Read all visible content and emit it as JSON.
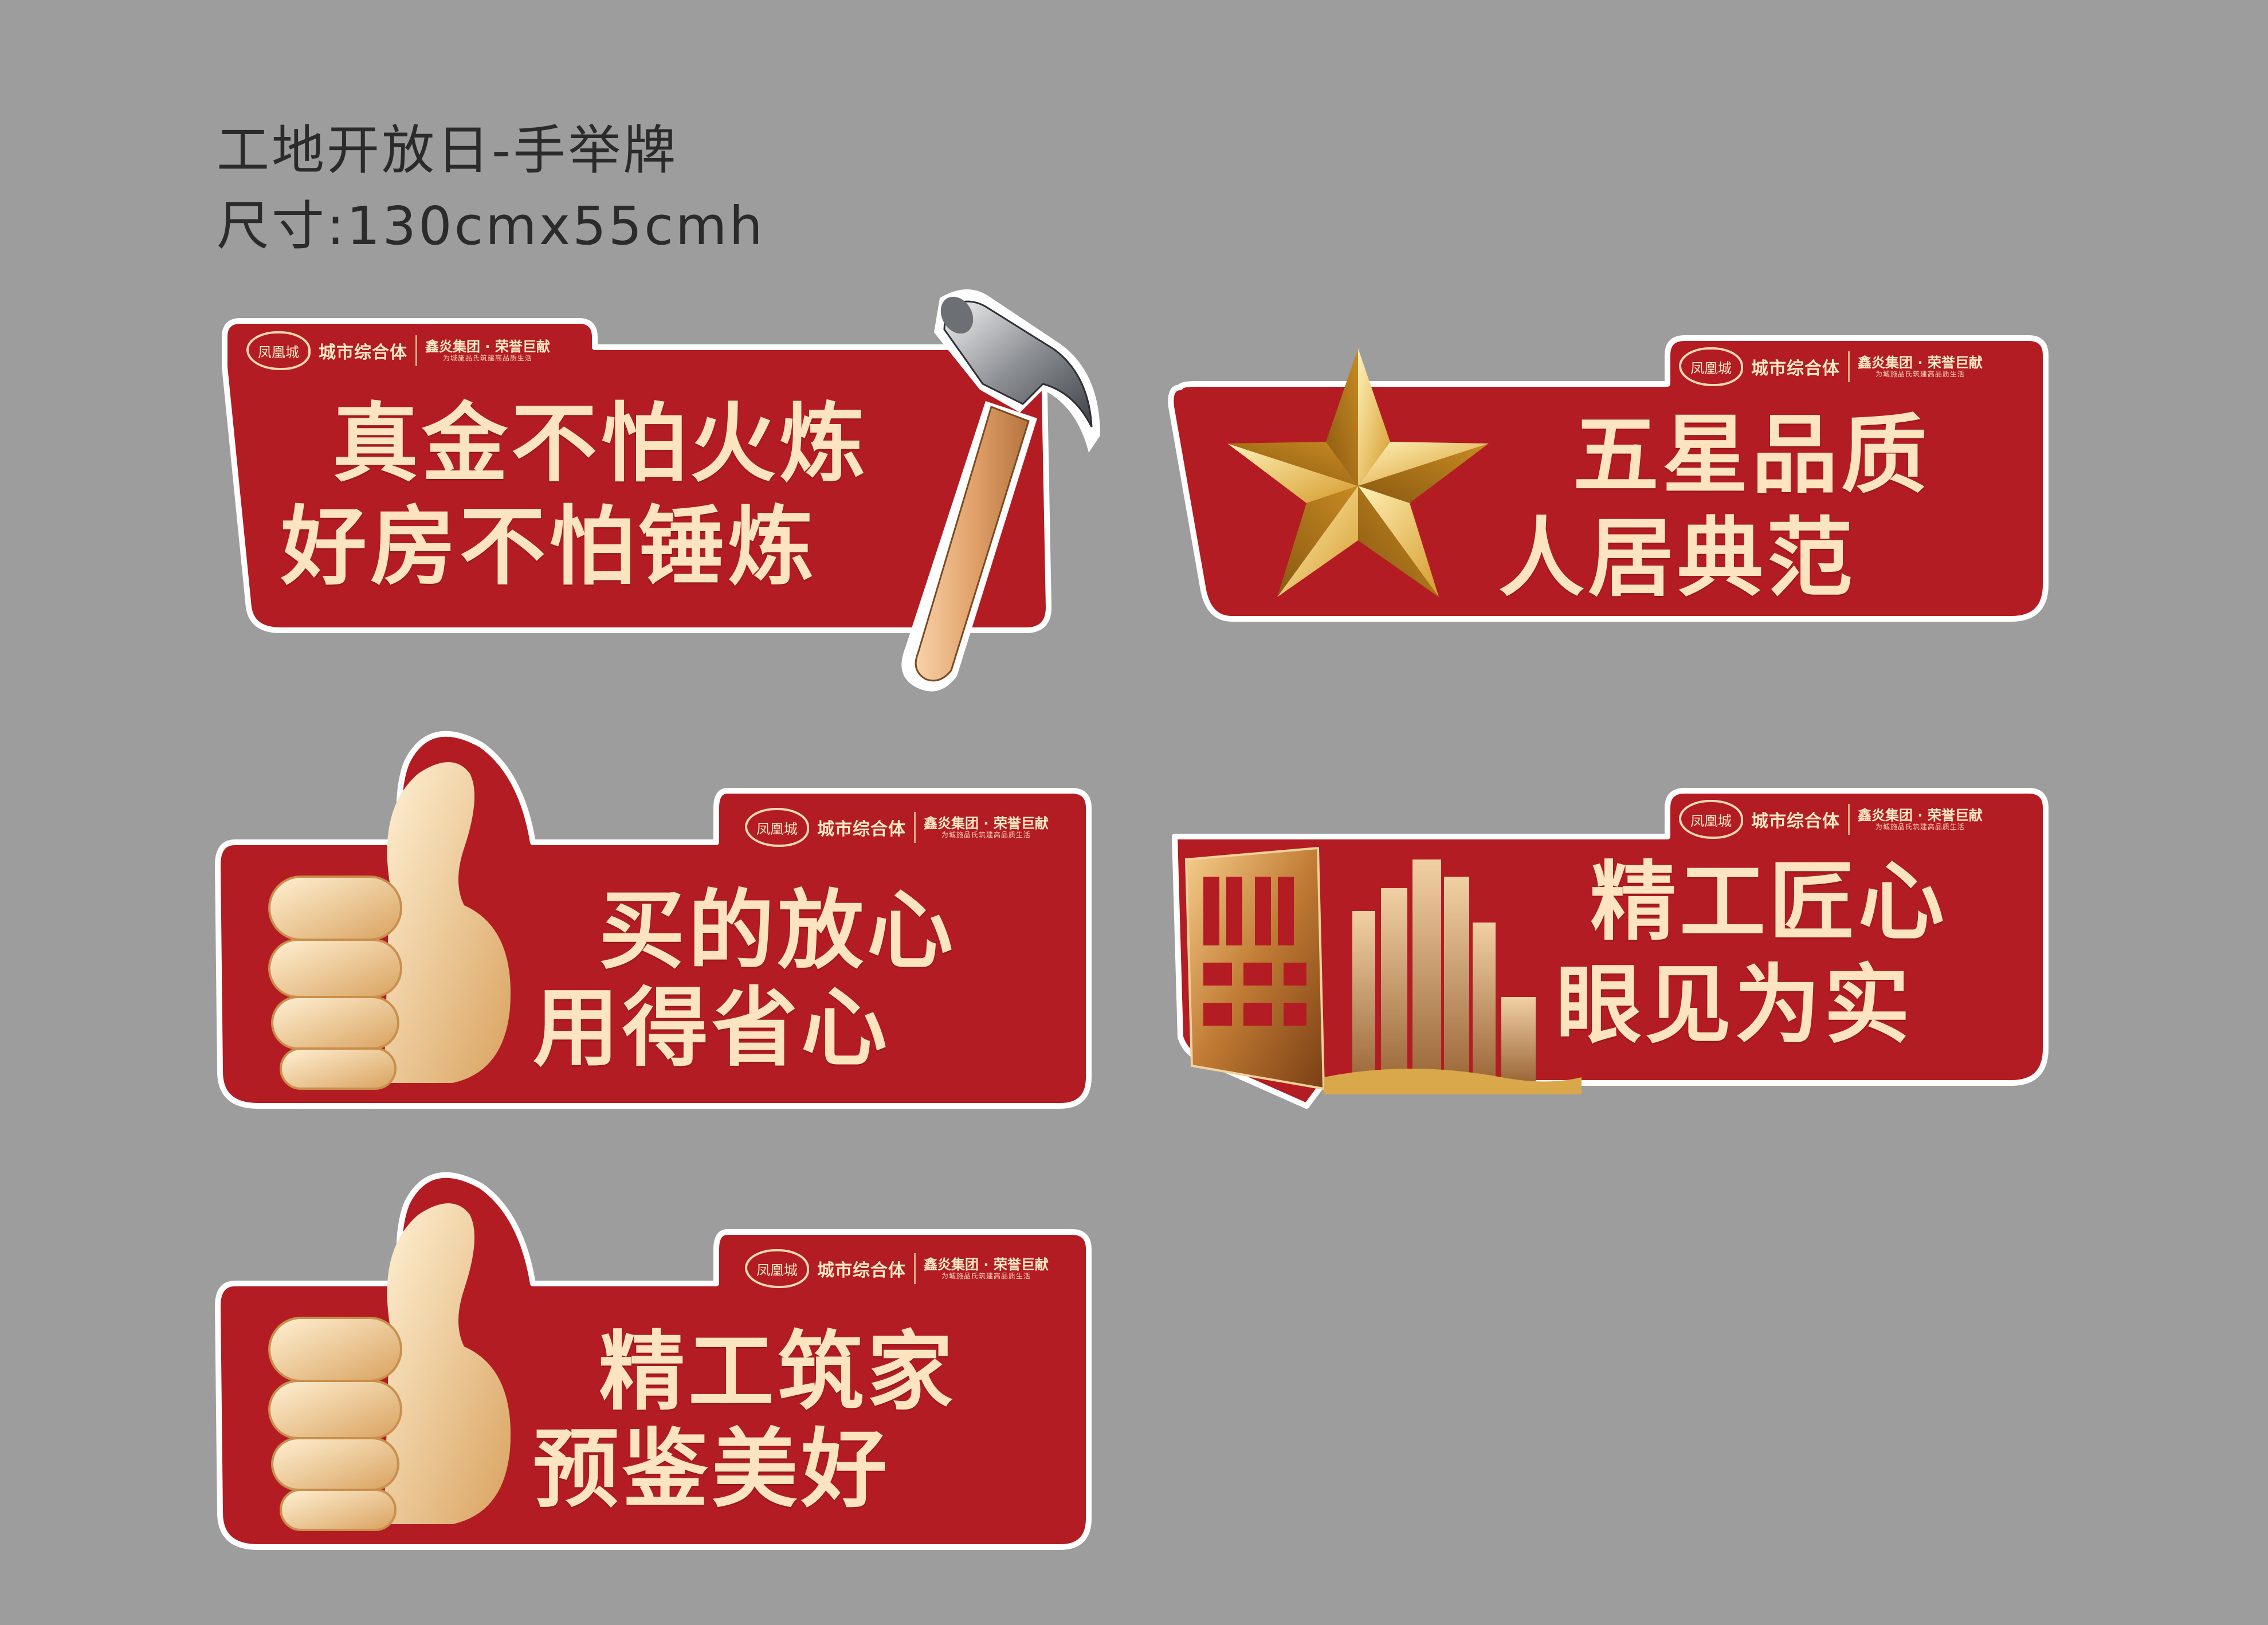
{
  "header": {
    "title": "工地开放日-手举牌",
    "size": "尺寸:130cmx55cmh"
  },
  "logo": {
    "seal": "凤凰城",
    "name": "城市综合体",
    "group": "鑫炎集团 · 荣誉巨献",
    "tagline": "为城施品氏筑建高品质生活"
  },
  "signs": [
    {
      "line1": "真金不怕火炼",
      "line2": "好房不怕锤炼",
      "icon": "hammer-icon"
    },
    {
      "line1": "五星品质",
      "line2": "人居典范",
      "icon": "gold-star-icon"
    },
    {
      "line1": "买的放心",
      "line2": "用得省心",
      "icon": "thumbs-up-icon"
    },
    {
      "line1": "精工匠心",
      "line2": "眼见为实",
      "icon": "city-buildings-icon"
    },
    {
      "line1": "精工筑家",
      "line2": "预鉴美好",
      "icon": "thumbs-up-icon"
    }
  ],
  "colors": {
    "background": "#9d9d9e",
    "sign_red": "#b31c22",
    "text_cream": "#fce4bf",
    "gold": "#d8a84a"
  }
}
